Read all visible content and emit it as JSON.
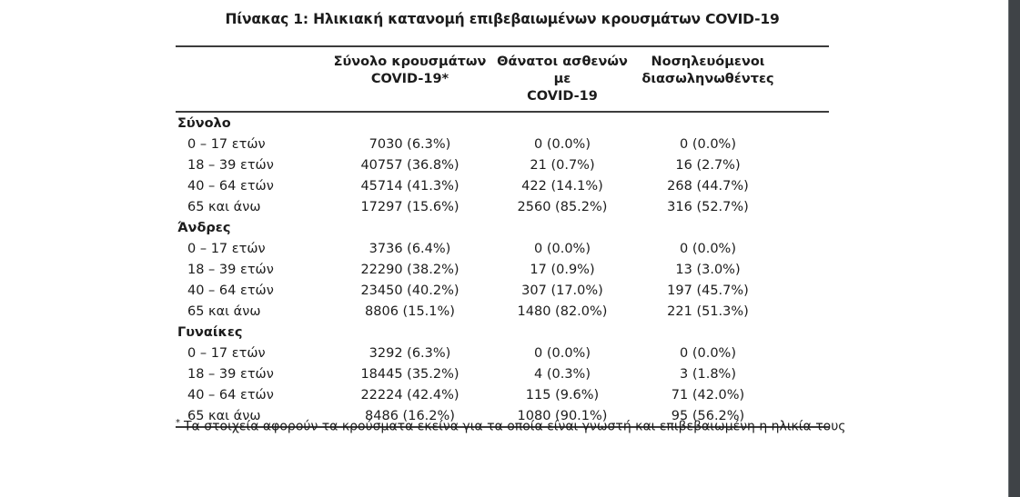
{
  "document": {
    "title": "Πίνακας 1: Ηλικιακή κατανομή επιβεβαιωμένων κρουσμάτων COVID-19",
    "footnote": {
      "marker": "*",
      "text": "Τα στοιχεία αφορούν τα κρούσματα εκείνα για τα οποία είναι γνωστή και επιβεβαιωμένη η ηλικία τους"
    }
  },
  "table": {
    "header": {
      "col1": {
        "line1": "Σύνολο κρουσμάτων",
        "line2": "COVID-19*"
      },
      "col2": {
        "line1": "Θάνατοι ασθενών με",
        "line2": "COVID-19"
      },
      "col3": {
        "line1": "Νοσηλευόμενοι",
        "line2": "διασωληνωθέντες"
      }
    },
    "sections": [
      {
        "label": "Σύνολο",
        "rows": [
          {
            "age": "0 – 17 ετών",
            "cases": "7030 (6.3%)",
            "deaths": "0 (0.0%)",
            "intubated": "0 (0.0%)"
          },
          {
            "age": "18 – 39 ετών",
            "cases": "40757 (36.8%)",
            "deaths": "21 (0.7%)",
            "intubated": "16 (2.7%)"
          },
          {
            "age": "40 – 64 ετών",
            "cases": "45714 (41.3%)",
            "deaths": "422 (14.1%)",
            "intubated": "268 (44.7%)"
          },
          {
            "age": "65 και άνω",
            "cases": "17297 (15.6%)",
            "deaths": "2560 (85.2%)",
            "intubated": "316 (52.7%)"
          }
        ]
      },
      {
        "label": "Άνδρες",
        "rows": [
          {
            "age": "0 – 17 ετών",
            "cases": "3736 (6.4%)",
            "deaths": "0 (0.0%)",
            "intubated": "0 (0.0%)"
          },
          {
            "age": "18 – 39 ετών",
            "cases": "22290 (38.2%)",
            "deaths": "17 (0.9%)",
            "intubated": "13 (3.0%)"
          },
          {
            "age": "40 – 64 ετών",
            "cases": "23450 (40.2%)",
            "deaths": "307 (17.0%)",
            "intubated": "197 (45.7%)"
          },
          {
            "age": "65 και άνω",
            "cases": "8806 (15.1%)",
            "deaths": "1480 (82.0%)",
            "intubated": "221 (51.3%)"
          }
        ]
      },
      {
        "label": "Γυναίκες",
        "rows": [
          {
            "age": "0 – 17 ετών",
            "cases": "3292 (6.3%)",
            "deaths": "0 (0.0%)",
            "intubated": "0 (0.0%)"
          },
          {
            "age": "18 – 39 ετών",
            "cases": "18445 (35.2%)",
            "deaths": "4 (0.3%)",
            "intubated": "3 (1.8%)"
          },
          {
            "age": "40 – 64 ετών",
            "cases": "22224 (42.4%)",
            "deaths": "115 (9.6%)",
            "intubated": "71 (42.0%)"
          },
          {
            "age": "65 και άνω",
            "cases": "8486 (16.2%)",
            "deaths": "1080 (90.1%)",
            "intubated": "95 (56.2%)"
          }
        ]
      }
    ]
  },
  "colors": {
    "rule": "#3c3c3c",
    "text": "#1c1c1c",
    "viewer_edge": "#3f4347"
  }
}
